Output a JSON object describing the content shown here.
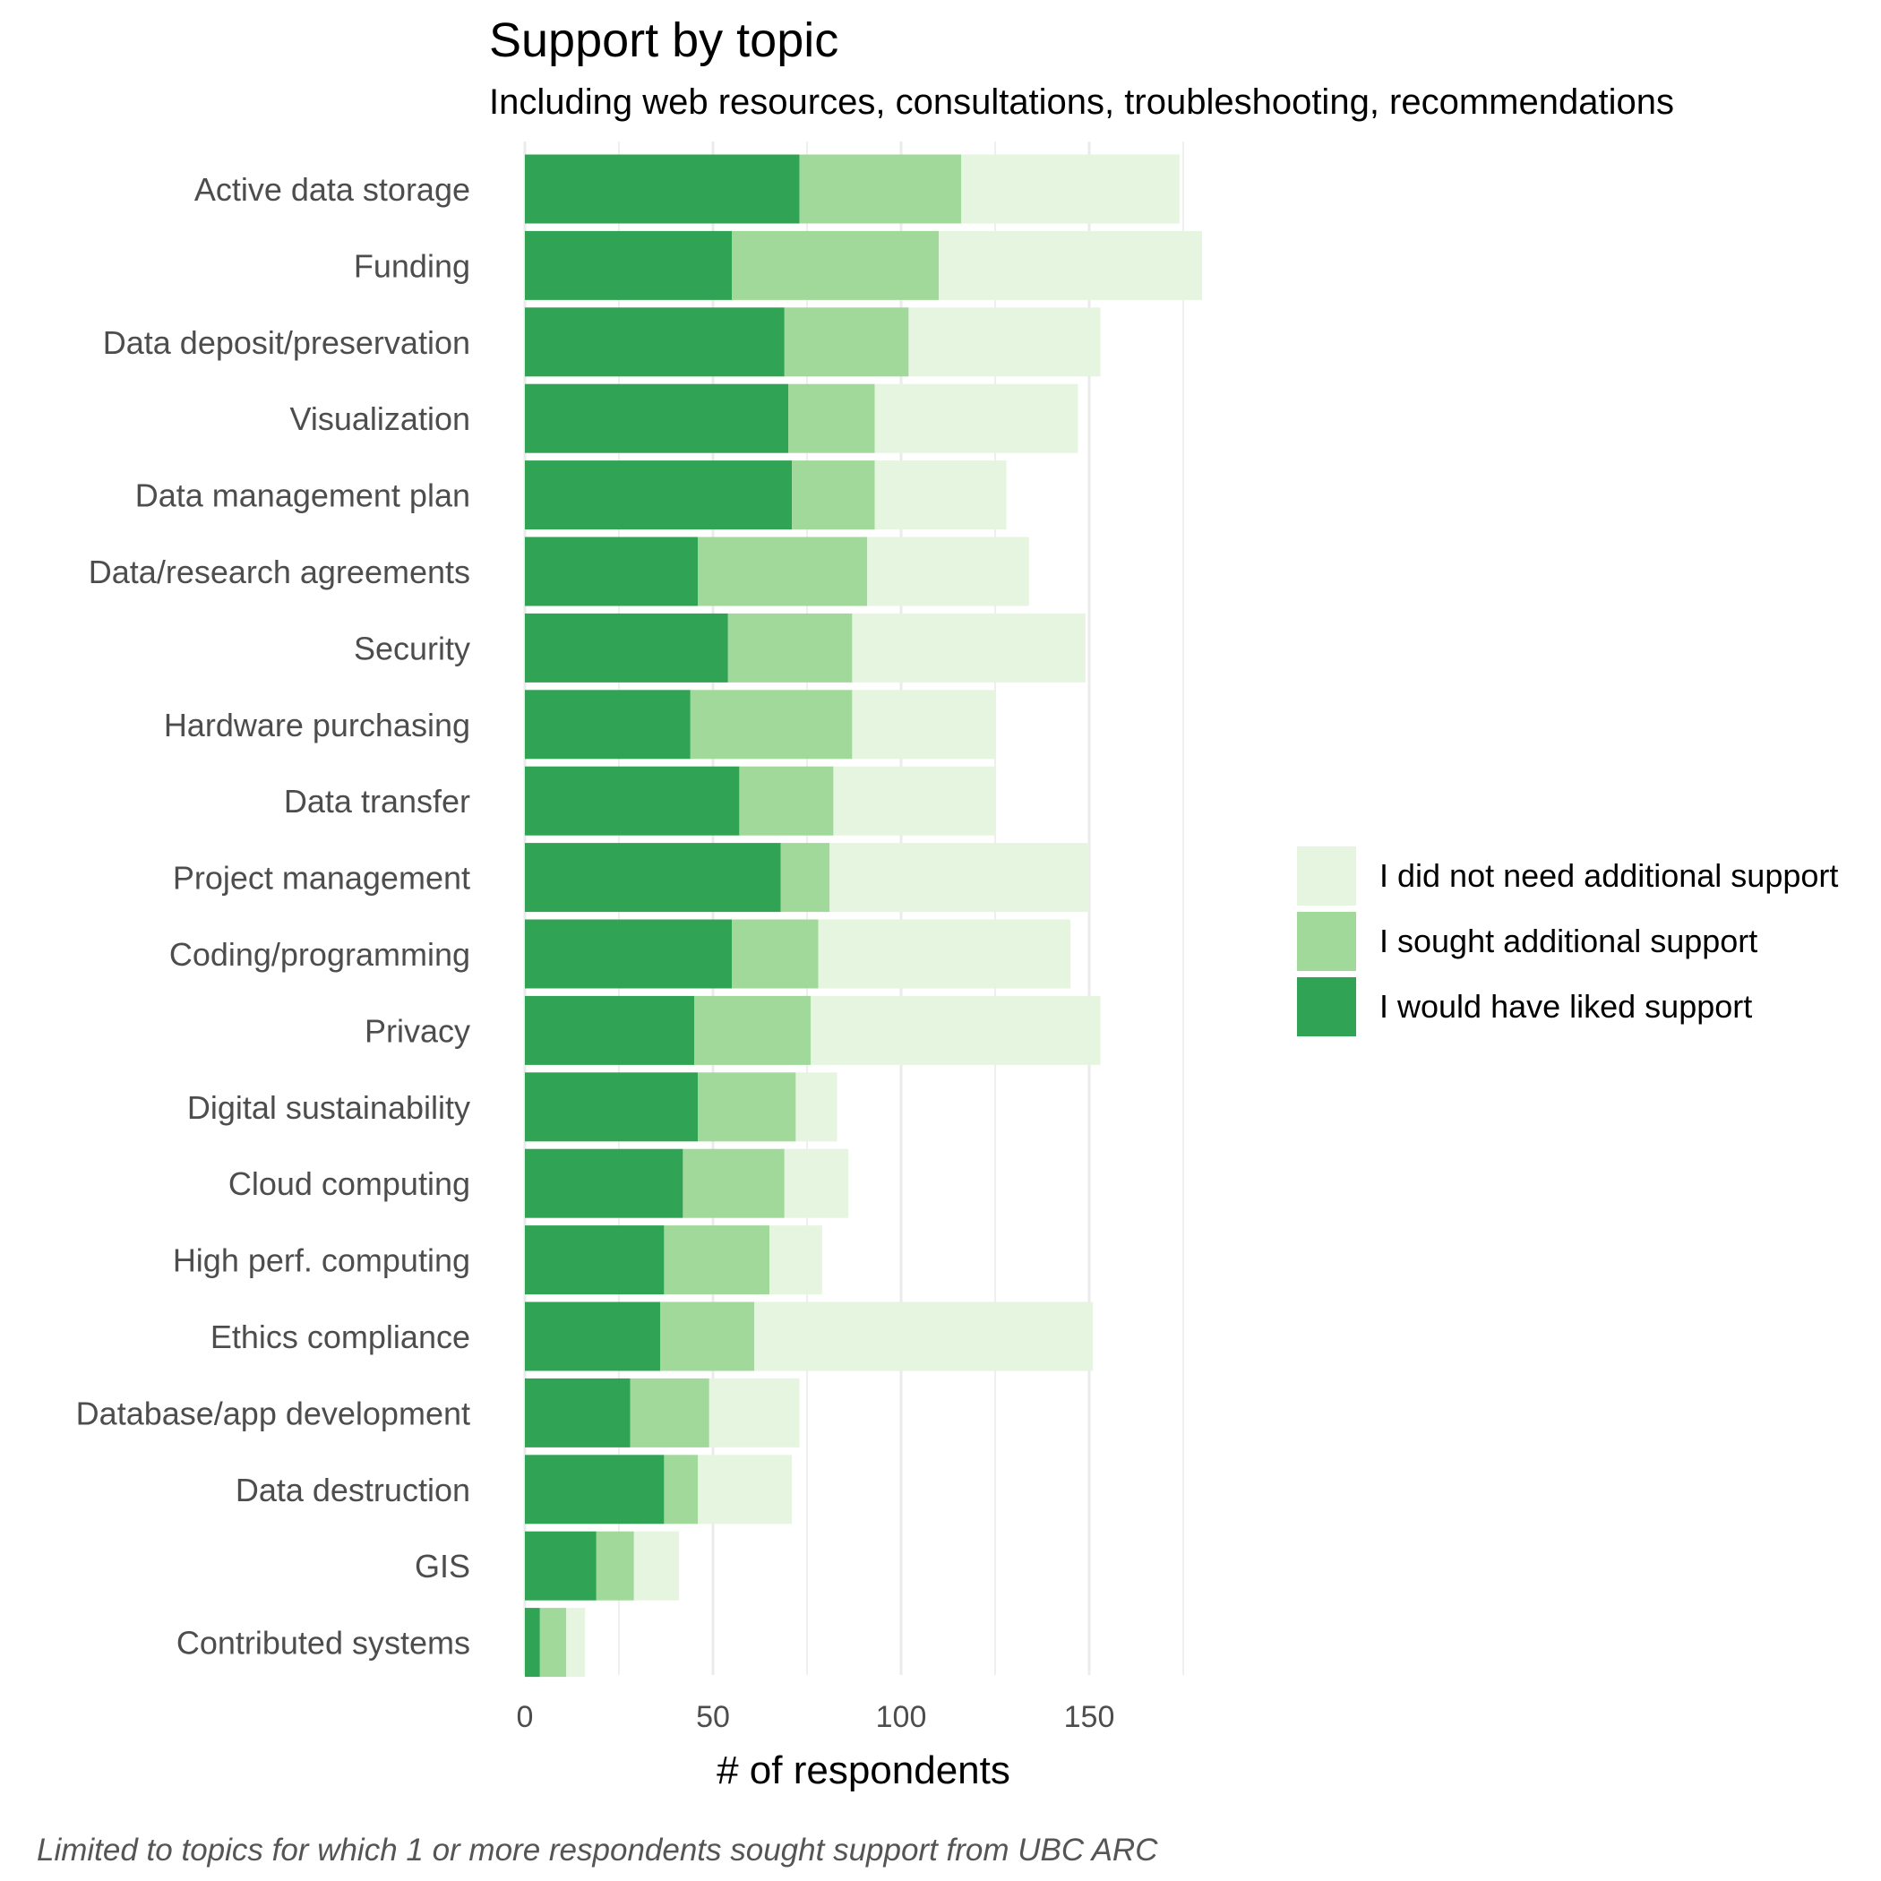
{
  "title": "Support by topic",
  "subtitle": "Including web resources, consultations, troubleshooting, recommendations",
  "caption": "Limited to topics for which 1 or more respondents sought support from UBC ARC",
  "chart_data": {
    "type": "bar",
    "orientation": "horizontal",
    "stacked": true,
    "xlabel": "# of respondents",
    "ylabel": "",
    "xlim": [
      0,
      180
    ],
    "x_ticks": [
      0,
      50,
      100,
      150
    ],
    "grid": true,
    "legend_position": "right",
    "categories": [
      "Active data storage",
      "Funding",
      "Data deposit/preservation",
      "Visualization",
      "Data management plan",
      "Data/research agreements",
      "Security",
      "Hardware purchasing",
      "Data transfer",
      "Project management",
      "Coding/programming",
      "Privacy",
      "Digital sustainability",
      "Cloud computing",
      "High perf. computing",
      "Ethics compliance",
      "Database/app development",
      "Data destruction",
      "GIS",
      "Contributed systems"
    ],
    "series": [
      {
        "name": "I would have liked support",
        "color": "#31a354",
        "values": [
          73,
          55,
          69,
          70,
          71,
          46,
          54,
          44,
          57,
          68,
          55,
          45,
          46,
          42,
          37,
          36,
          28,
          37,
          19,
          4
        ]
      },
      {
        "name": "I sought additional support",
        "color": "#a1d99b",
        "values": [
          43,
          55,
          33,
          23,
          22,
          45,
          33,
          43,
          25,
          13,
          23,
          31,
          26,
          27,
          28,
          25,
          21,
          9,
          10,
          7
        ]
      },
      {
        "name": "I did not need additional support",
        "color": "#e5f5e0",
        "values": [
          58,
          70,
          51,
          54,
          35,
          43,
          62,
          38,
          43,
          69,
          67,
          77,
          11,
          17,
          14,
          90,
          24,
          25,
          12,
          5
        ]
      }
    ],
    "legend_order": [
      "I did not need additional support",
      "I sought additional support",
      "I would have liked support"
    ]
  }
}
